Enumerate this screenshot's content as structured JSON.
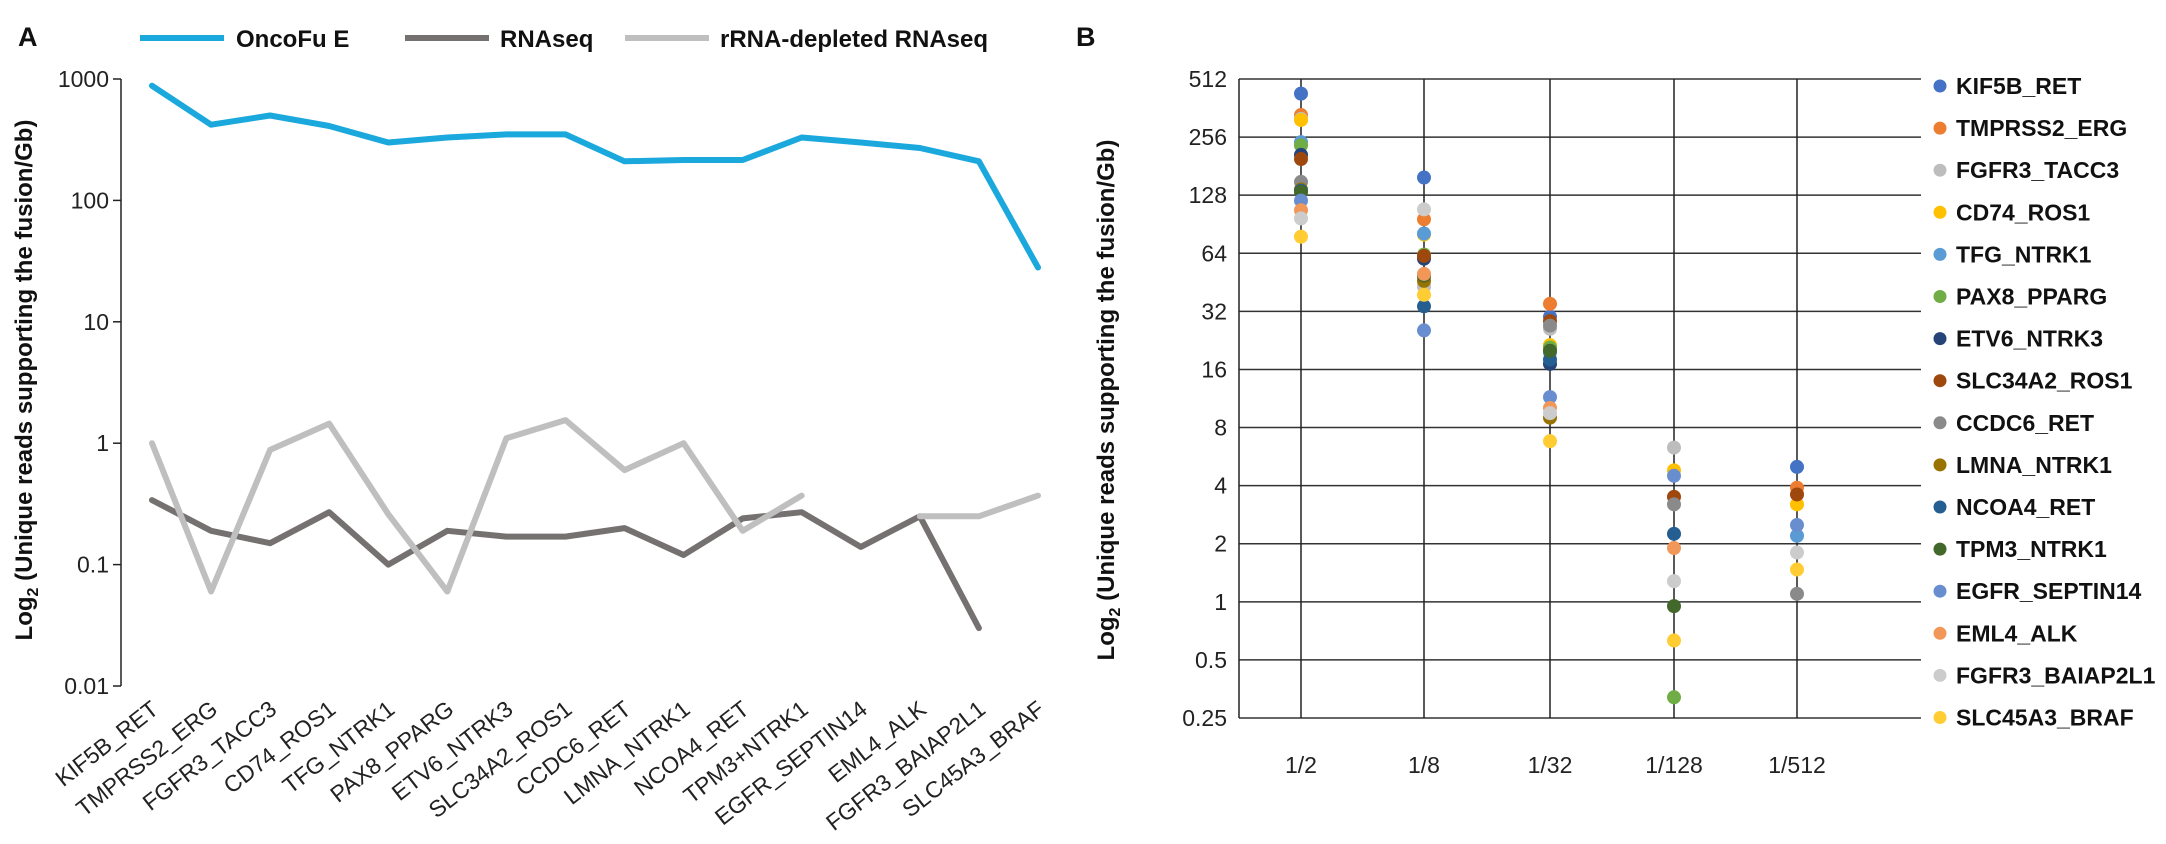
{
  "panels": {
    "a_label": "A",
    "b_label": "B"
  },
  "chart_data": [
    {
      "type": "line",
      "panel": "A",
      "ylabel": "Log2 (Unique reads supporting the fusion/Gb)",
      "ylabel_main": "Log",
      "ylabel_sub": "2",
      "ylabel_rest": " (Unique reads supporting the fusion/Gb)",
      "y_scale": "log10",
      "ylim": [
        0.01,
        1000
      ],
      "yticks": [
        "1000",
        "100",
        "10",
        "1",
        "0.1",
        "0.01"
      ],
      "ytick_values": [
        1000,
        100,
        10,
        1,
        0.1,
        0.01
      ],
      "legend_position": "top",
      "grid": false,
      "categories": [
        "KIF5B_RET",
        "TMPRSS2_ERG",
        "FGFR3_TACC3",
        "CD74_ROS1",
        "TFG_NTRK1",
        "PAX8_PPARG",
        "ETV6_NTRK3",
        "SLC34A2_ROS1",
        "CCDC6_RET",
        "LMNA_NTRK1",
        "NCOA4_RET",
        "TPM3+NTRK1",
        "EGFR_SEPTIN14",
        "EML4_ALK",
        "FGFR3_BAIAP2L1",
        "SLC45A3_BRAF"
      ],
      "series": [
        {
          "name": "OncoFu E",
          "color": "#1BA8DC",
          "values": [
            880,
            420,
            500,
            410,
            300,
            330,
            350,
            350,
            210,
            215,
            215,
            330,
            300,
            270,
            210,
            28
          ]
        },
        {
          "name": "RNAseq",
          "color": "#767171",
          "values": [
            0.34,
            0.19,
            0.15,
            0.27,
            0.1,
            0.19,
            0.17,
            0.17,
            0.2,
            0.12,
            0.24,
            0.27,
            0.14,
            0.25,
            0.03,
            null
          ]
        },
        {
          "name": "rRNA-depleted RNAseq",
          "color": "#BFBFBF",
          "values": [
            1.0,
            0.06,
            0.88,
            1.45,
            0.26,
            0.06,
            1.1,
            1.55,
            0.6,
            1.0,
            0.19,
            0.37,
            null,
            0.25,
            0.25,
            0.37
          ]
        }
      ]
    },
    {
      "type": "scatter",
      "panel": "B",
      "ylabel_main": "Log",
      "ylabel_sub": "2",
      "ylabel_rest": " (Unique reads supporting the fusion/Gb)",
      "y_scale": "log2",
      "ylim": [
        0.25,
        512
      ],
      "yticks": [
        "512",
        "256",
        "128",
        "64",
        "32",
        "16",
        "8",
        "4",
        "2",
        "1",
        "0.5",
        "0.25"
      ],
      "ytick_values": [
        512,
        256,
        128,
        64,
        32,
        16,
        8,
        4,
        2,
        1,
        0.5,
        0.25
      ],
      "grid": true,
      "legend_position": "right",
      "categories": [
        "1/2",
        "1/8",
        "1/32",
        "1/128",
        "1/512"
      ],
      "series": [
        {
          "name": "KIF5B_RET",
          "color": "#4472C4",
          "values": [
            430,
            158,
            30,
            null,
            5.0
          ]
        },
        {
          "name": "TMPRSS2_ERG",
          "color": "#ED7D31",
          "values": [
            333,
            96,
            35,
            null,
            3.9
          ]
        },
        {
          "name": "FGFR3_TACC3",
          "color": "#BDBDBD",
          "values": [
            318,
            43,
            26,
            6.3,
            null
          ]
        },
        {
          "name": "CD74_ROS1",
          "color": "#FFC000",
          "values": [
            314,
            80,
            21.4,
            4.8,
            3.2
          ]
        },
        {
          "name": "TFG_NTRK1",
          "color": "#5B9BD5",
          "values": [
            241,
            81,
            19.6,
            null,
            2.2
          ]
        },
        {
          "name": "PAX8_PPARG",
          "color": "#70AD47",
          "values": [
            232,
            63,
            20.8,
            0.32,
            null
          ]
        },
        {
          "name": "ETV6_NTRK3",
          "color": "#264478",
          "values": [
            207,
            60,
            17.1,
            null,
            null
          ]
        },
        {
          "name": "SLC34A2_ROS1",
          "color": "#9E480E",
          "values": [
            197,
            62,
            28.5,
            3.5,
            3.6
          ]
        },
        {
          "name": "CCDC6_RET",
          "color": "#8A8A8A",
          "values": [
            150,
            48,
            27,
            3.2,
            1.1
          ]
        },
        {
          "name": "LMNA_NTRK1",
          "color": "#997300",
          "values": [
            137,
            46,
            9.0,
            null,
            null
          ]
        },
        {
          "name": "NCOA4_RET",
          "color": "#255E91",
          "values": [
            135,
            34,
            18,
            2.25,
            null
          ]
        },
        {
          "name": "TPM3_NTRK1",
          "color": "#43682B",
          "values": [
            133,
            49,
            20,
            0.95,
            null
          ]
        },
        {
          "name": "EGFR_SEPTIN14",
          "color": "#698ED0",
          "values": [
            120,
            25.5,
            11.5,
            4.5,
            2.5
          ]
        },
        {
          "name": "EML4_ALK",
          "color": "#F1975A",
          "values": [
            107,
            50,
            10.1,
            1.9,
            null
          ]
        },
        {
          "name": "FGFR3_BAIAP2L1",
          "color": "#CCCCCC",
          "values": [
            97,
            108,
            9.5,
            1.28,
            1.8
          ]
        },
        {
          "name": "SLC45A3_BRAF",
          "color": "#FFCD33",
          "values": [
            78,
            39,
            6.8,
            0.63,
            1.47
          ]
        }
      ]
    }
  ]
}
